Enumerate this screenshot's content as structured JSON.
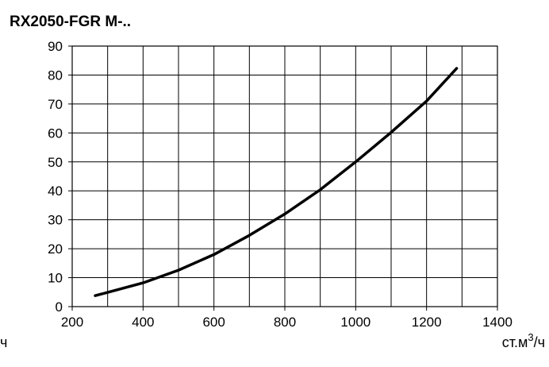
{
  "chart_data": {
    "type": "line",
    "title": "RX2050-FGR M-..",
    "xlabel_left": "ч",
    "xlabel": "ст.м",
    "xlabel_sup": "3",
    "xlabel_tail": "/ч",
    "xlim": [
      200,
      1400
    ],
    "ylim": [
      0,
      90
    ],
    "x_ticks": [
      200,
      400,
      600,
      800,
      1000,
      1200,
      1400
    ],
    "y_ticks": [
      0,
      10,
      20,
      30,
      40,
      50,
      60,
      70,
      80,
      90
    ],
    "grid": true,
    "series": [
      {
        "x": [
          265,
          300,
          400,
          500,
          600,
          700,
          800,
          900,
          1000,
          1100,
          1200,
          1285
        ],
        "y": [
          3.8,
          4.9,
          8.2,
          12.6,
          18.0,
          24.6,
          32.0,
          40.4,
          50.0,
          60.2,
          71.0,
          82.3
        ]
      }
    ],
    "colors": {
      "line": "#000000",
      "grid": "#000000",
      "background": "#ffffff"
    }
  }
}
